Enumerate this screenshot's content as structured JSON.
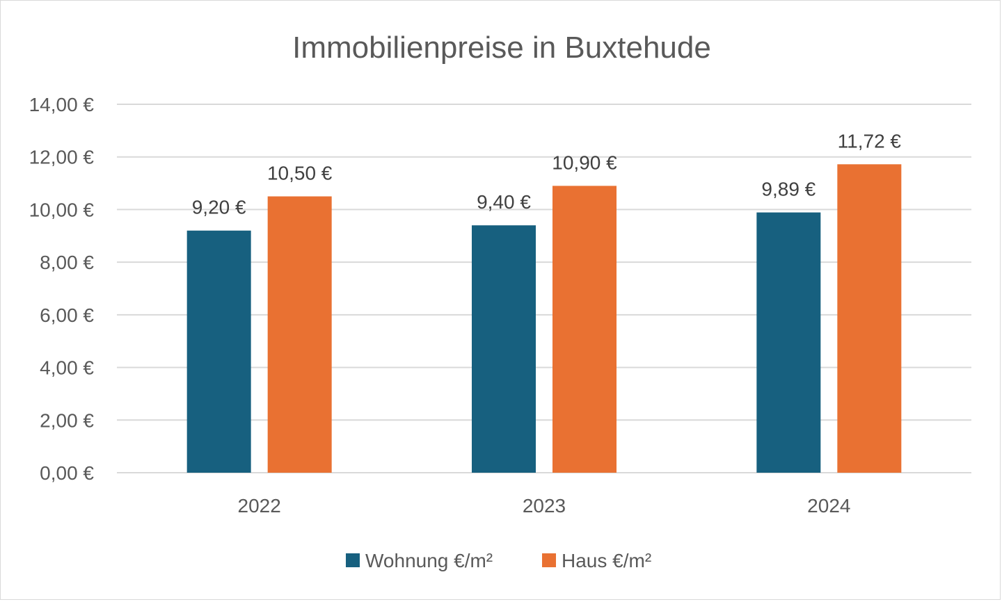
{
  "chart_data": {
    "type": "bar",
    "title": "Immobilienpreise in Buxtehude",
    "xlabel": "",
    "ylabel": "",
    "categories": [
      "2022",
      "2023",
      "2024"
    ],
    "series": [
      {
        "name": "Wohnung €/m²",
        "values": [
          9.2,
          9.4,
          9.89
        ],
        "labels": [
          "9,20 €",
          "9,40 €",
          "9,89 €"
        ],
        "color": "#17607f"
      },
      {
        "name": "Haus €/m²",
        "values": [
          10.5,
          10.9,
          11.72
        ],
        "labels": [
          "10,50 €",
          "10,90 €",
          "11,72 €"
        ],
        "color": "#e97132"
      }
    ],
    "ylim": [
      0,
      14
    ],
    "yticks": [
      0,
      2,
      4,
      6,
      8,
      10,
      12,
      14
    ],
    "ytick_labels": [
      "0,00 €",
      "2,00 €",
      "4,00 €",
      "6,00 €",
      "8,00 €",
      "10,00 €",
      "12,00 €",
      "14,00 €"
    ],
    "grid": true,
    "legend_position": "bottom",
    "gridline_color": "#d9d9d9"
  }
}
